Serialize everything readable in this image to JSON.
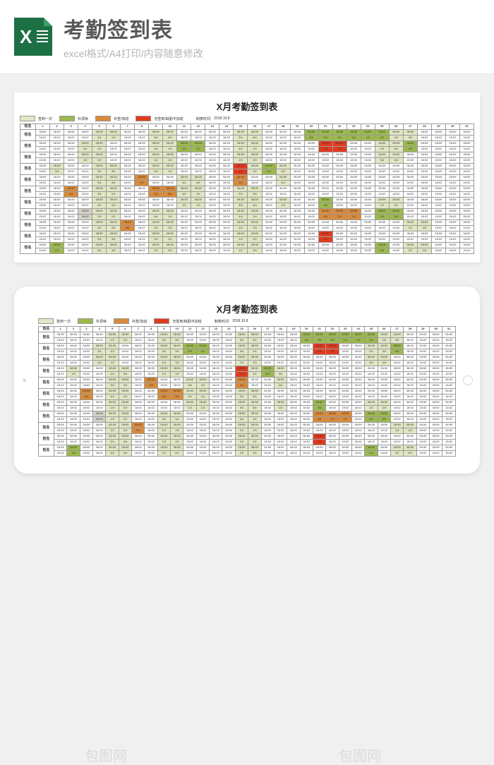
{
  "header": {
    "main_title": "考勤签到表",
    "sub_title": "excel格式/A4打印/内容随意修改"
  },
  "sheet": {
    "title": "X月考勤签到表",
    "legend": {
      "items": [
        {
          "label": "签到一次",
          "color": "#e1e6c4"
        },
        {
          "label": "补调休",
          "color": "#9cb94f"
        },
        {
          "label": "补签/加班",
          "color": "#d98a3a"
        },
        {
          "label": "无签到/缺勤平加班",
          "color": "#e23a1f"
        }
      ],
      "made_by_label": "制表时间:",
      "made_by_value": "2018.10.8"
    },
    "name_header": "姓名",
    "days": 31,
    "rows": 11,
    "row_name": "姓名",
    "cell_text_top": "08:59",
    "cell_text_bot": "18:02",
    "cell_text_frac": [
      "1/2",
      "2/4",
      "3/4",
      "4/4",
      "1/4",
      "1/3"
    ],
    "palette": {
      "none": "#ffffff",
      "once": "#e1e6c4",
      "rest": "#9cb94f",
      "ot": "#d98a3a",
      "miss": "#e23a1f",
      "gray": "#d5d2c8"
    },
    "pattern": [
      "nnnnoonnoonnnnoonnnrrrrrroonnnn",
      "nnnoonnnoorrnnoonnnnmmnnoornnnn",
      "nnnoonnnoonnnnoonnnnnnnnoonnnnn",
      "nonnoonnoonnnnmoronnnnnnnnnnnnn",
      "nnnnoontnnoonntnnonnnnnnnnnnnnn",
      "nntnoonnttoonnoonnnnnnnnnnnnnnn",
      "nnnnoonnnnoonnoononnrnnnoonnnnn",
      "nnngoonnoonnnnoonnnntttnrrnnnnn",
      "nnnnootnoonnnnoonnnnnnnnnnoonnn",
      "nnnnoonnoonnnnoonnnnmnnnnnnnnnn",
      "nrnnoonnoonnnnoonnnnnnnnrnoonnn"
    ]
  },
  "watermarks": [
    "包图网",
    "包图网",
    "包图网",
    "包图网",
    "包图网"
  ]
}
